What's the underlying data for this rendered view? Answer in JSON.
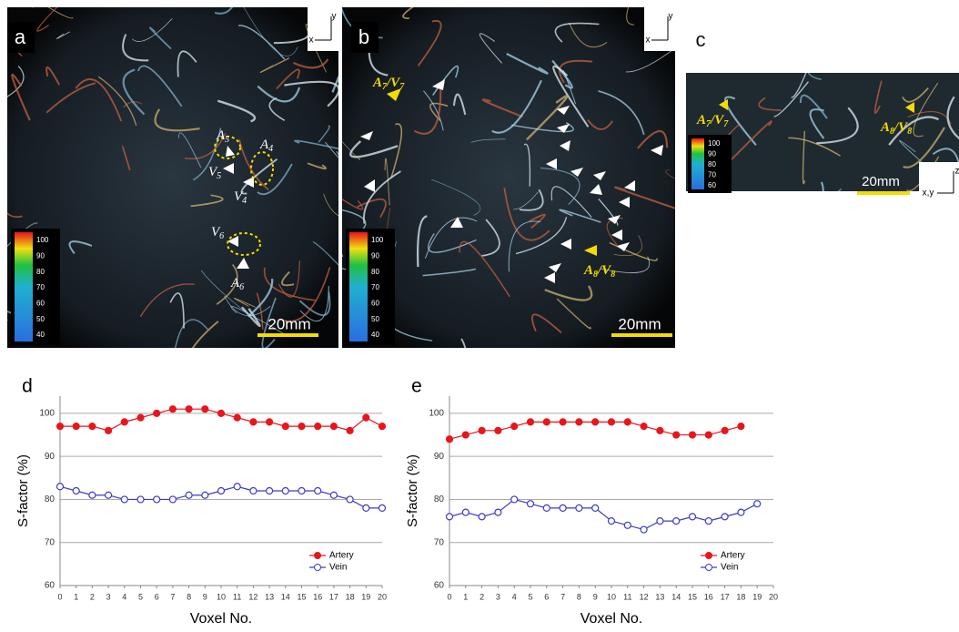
{
  "panels": [
    {
      "label": "a",
      "axes": [
        "x",
        "y"
      ],
      "scale_bar": "20mm",
      "colorbar_ticks": [
        100,
        90,
        80,
        70,
        60,
        50,
        40
      ],
      "annotations": [
        {
          "base": "A",
          "sub": "5"
        },
        {
          "base": "A",
          "sub": "4"
        },
        {
          "base": "V",
          "sub": "5"
        },
        {
          "base": "V",
          "sub": "4"
        },
        {
          "base": "V",
          "sub": "6"
        },
        {
          "base": "A",
          "sub": "6"
        }
      ]
    },
    {
      "label": "b",
      "axes": [
        "x",
        "y"
      ],
      "scale_bar": "20mm",
      "colorbar_ticks": [
        100,
        90,
        80,
        70,
        60,
        50,
        40
      ],
      "annotations": [
        {
          "base": "A",
          "sub": "7",
          "base2": "/V",
          "sub2": "7"
        },
        {
          "base": "A",
          "sub": "8",
          "base2": "/V",
          "sub2": "8"
        }
      ]
    },
    {
      "label": "c",
      "axes": [
        "z",
        "x,y"
      ],
      "scale_bar": "20mm",
      "colorbar_ticks": [
        100,
        90,
        80,
        70,
        60
      ],
      "annotations": [
        {
          "base": "A",
          "sub": "7",
          "base2": "/V",
          "sub2": "7"
        },
        {
          "base": "A",
          "sub": "8",
          "base2": "/V",
          "sub2": "8"
        }
      ]
    }
  ],
  "chart_data": [
    {
      "type": "line",
      "label": "d",
      "xlabel": "Voxel No.",
      "ylabel": "S-factor (%)",
      "x": [
        0,
        1,
        2,
        3,
        4,
        5,
        6,
        7,
        8,
        9,
        10,
        11,
        12,
        13,
        14,
        15,
        16,
        17,
        18,
        19,
        20
      ],
      "xlim": [
        0,
        20
      ],
      "xticks": [
        0,
        1,
        2,
        3,
        4,
        5,
        6,
        7,
        8,
        9,
        10,
        11,
        12,
        13,
        14,
        15,
        16,
        17,
        18,
        19,
        20
      ],
      "ylim": [
        60,
        104
      ],
      "yticks": [
        60,
        70,
        80,
        90,
        100
      ],
      "grid": true,
      "legend": "lower right",
      "series": [
        {
          "name": "Artery",
          "color": "#e8161c",
          "filled": true,
          "values": [
            97,
            97,
            97,
            96,
            98,
            99,
            100,
            101,
            101,
            101,
            100,
            99,
            98,
            98,
            97,
            97,
            97,
            97,
            96,
            99,
            97
          ]
        },
        {
          "name": "Vein",
          "color": "#3c3cc8",
          "filled": false,
          "values": [
            83,
            82,
            81,
            81,
            80,
            80,
            80,
            80,
            81,
            81,
            82,
            83,
            82,
            82,
            82,
            82,
            82,
            81,
            80,
            78,
            78
          ]
        }
      ]
    },
    {
      "type": "line",
      "label": "e",
      "xlabel": "Voxel No.",
      "ylabel": "S-factor (%)",
      "x": [
        0,
        1,
        2,
        3,
        4,
        5,
        6,
        7,
        8,
        9,
        10,
        11,
        12,
        13,
        14,
        15,
        16,
        17,
        18,
        19,
        20
      ],
      "xlim": [
        0,
        20
      ],
      "xticks": [
        0,
        1,
        2,
        3,
        4,
        5,
        6,
        7,
        8,
        9,
        10,
        11,
        12,
        13,
        14,
        15,
        16,
        17,
        18,
        19,
        20
      ],
      "ylim": [
        60,
        104
      ],
      "yticks": [
        60,
        70,
        80,
        90,
        100
      ],
      "grid": true,
      "legend": "lower right",
      "series": [
        {
          "name": "Artery",
          "color": "#e8161c",
          "filled": true,
          "values": [
            94,
            95,
            96,
            96,
            97,
            98,
            98,
            98,
            98,
            98,
            98,
            98,
            97,
            96,
            95,
            95,
            95,
            96,
            97,
            null,
            null
          ]
        },
        {
          "name": "Vein",
          "color": "#3c3cc8",
          "filled": false,
          "values": [
            76,
            77,
            76,
            77,
            80,
            79,
            78,
            78,
            78,
            78,
            75,
            74,
            73,
            75,
            75,
            76,
            75,
            76,
            77,
            79,
            null
          ]
        }
      ]
    }
  ]
}
